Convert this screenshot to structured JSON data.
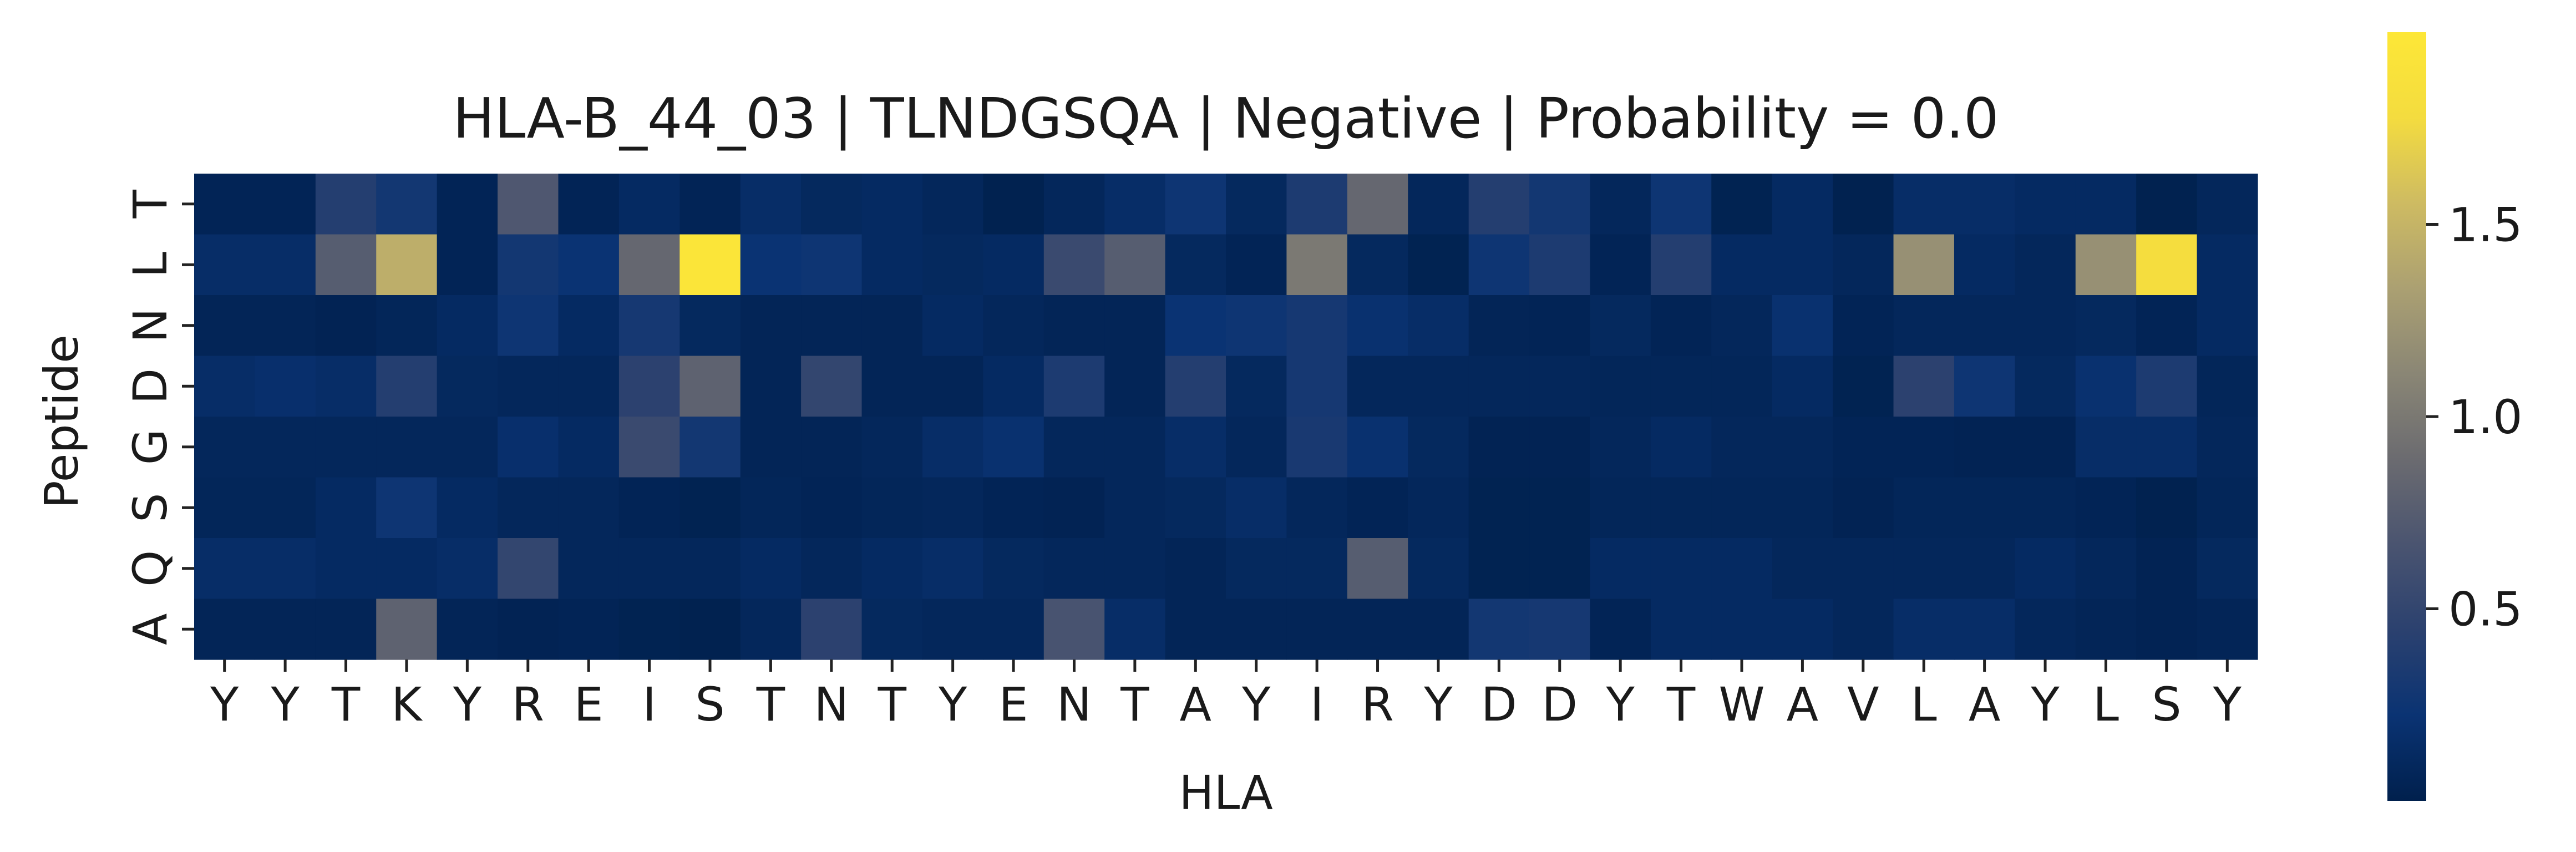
{
  "chart_data": {
    "type": "heatmap",
    "title": "HLA-B_44_03 | TLNDGSQA | Negative | Probability = 0.0",
    "xlabel": "HLA",
    "ylabel": "Peptide",
    "x_categories": [
      "Y",
      "Y",
      "T",
      "K",
      "Y",
      "R",
      "E",
      "I",
      "S",
      "T",
      "N",
      "T",
      "Y",
      "E",
      "N",
      "T",
      "A",
      "Y",
      "I",
      "R",
      "Y",
      "D",
      "D",
      "Y",
      "T",
      "W",
      "A",
      "V",
      "L",
      "A",
      "Y",
      "L",
      "S",
      "Y"
    ],
    "y_categories": [
      "T",
      "L",
      "N",
      "D",
      "G",
      "S",
      "Q",
      "A"
    ],
    "values": [
      [
        0.05,
        0.05,
        0.4,
        0.28,
        0.05,
        0.7,
        0.05,
        0.12,
        0.05,
        0.15,
        0.1,
        0.12,
        0.08,
        0.02,
        0.08,
        0.15,
        0.25,
        0.1,
        0.35,
        0.85,
        0.08,
        0.4,
        0.28,
        0.08,
        0.25,
        0.03,
        0.12,
        0.02,
        0.15,
        0.15,
        0.12,
        0.12,
        0.02,
        0.08
      ],
      [
        0.15,
        0.15,
        0.75,
        1.45,
        0.05,
        0.28,
        0.22,
        0.85,
        1.95,
        0.22,
        0.25,
        0.12,
        0.1,
        0.12,
        0.55,
        0.75,
        0.1,
        0.05,
        1.0,
        0.1,
        0.03,
        0.25,
        0.35,
        0.05,
        0.4,
        0.12,
        0.12,
        0.08,
        1.2,
        0.12,
        0.08,
        1.2,
        1.8,
        0.12
      ],
      [
        0.06,
        0.06,
        0.04,
        0.07,
        0.12,
        0.25,
        0.12,
        0.3,
        0.1,
        0.06,
        0.06,
        0.06,
        0.12,
        0.08,
        0.06,
        0.06,
        0.22,
        0.25,
        0.3,
        0.2,
        0.15,
        0.06,
        0.05,
        0.1,
        0.05,
        0.08,
        0.2,
        0.05,
        0.08,
        0.08,
        0.08,
        0.1,
        0.05,
        0.12
      ],
      [
        0.15,
        0.18,
        0.15,
        0.4,
        0.1,
        0.08,
        0.08,
        0.45,
        0.8,
        0.06,
        0.5,
        0.06,
        0.06,
        0.12,
        0.35,
        0.06,
        0.4,
        0.1,
        0.3,
        0.08,
        0.08,
        0.08,
        0.08,
        0.07,
        0.07,
        0.07,
        0.12,
        0.03,
        0.45,
        0.25,
        0.1,
        0.2,
        0.35,
        0.07
      ],
      [
        0.08,
        0.08,
        0.08,
        0.08,
        0.08,
        0.18,
        0.12,
        0.55,
        0.28,
        0.06,
        0.06,
        0.08,
        0.15,
        0.2,
        0.08,
        0.08,
        0.15,
        0.08,
        0.32,
        0.2,
        0.1,
        0.04,
        0.04,
        0.08,
        0.12,
        0.08,
        0.08,
        0.05,
        0.05,
        0.04,
        0.04,
        0.15,
        0.15,
        0.08
      ],
      [
        0.07,
        0.07,
        0.12,
        0.25,
        0.12,
        0.08,
        0.08,
        0.05,
        0.03,
        0.07,
        0.05,
        0.07,
        0.08,
        0.05,
        0.04,
        0.08,
        0.1,
        0.15,
        0.08,
        0.05,
        0.08,
        0.03,
        0.03,
        0.07,
        0.07,
        0.07,
        0.07,
        0.04,
        0.07,
        0.07,
        0.07,
        0.05,
        0.02,
        0.07
      ],
      [
        0.15,
        0.15,
        0.12,
        0.12,
        0.15,
        0.5,
        0.08,
        0.08,
        0.08,
        0.12,
        0.08,
        0.12,
        0.15,
        0.1,
        0.08,
        0.08,
        0.06,
        0.1,
        0.1,
        0.75,
        0.1,
        0.03,
        0.03,
        0.12,
        0.12,
        0.12,
        0.08,
        0.08,
        0.08,
        0.08,
        0.12,
        0.08,
        0.04,
        0.1
      ],
      [
        0.06,
        0.06,
        0.06,
        0.8,
        0.06,
        0.04,
        0.05,
        0.03,
        0.02,
        0.08,
        0.45,
        0.1,
        0.08,
        0.08,
        0.65,
        0.15,
        0.06,
        0.06,
        0.06,
        0.06,
        0.06,
        0.28,
        0.3,
        0.05,
        0.12,
        0.12,
        0.12,
        0.08,
        0.15,
        0.15,
        0.08,
        0.06,
        0.04,
        0.06
      ]
    ],
    "colormap": "cividis",
    "colors": [
      "#00204d",
      "#0a3373",
      "#2b416f",
      "#4a5470",
      "#6b6b70",
      "#8a8675",
      "#aba072",
      "#cebb62",
      "#f4dc3f",
      "#fde737"
    ],
    "vmin": 0.0,
    "vmax": 2.0,
    "colorbar": {
      "ticks": [
        0.5,
        1.0,
        1.5
      ],
      "tick_labels": [
        "0.5",
        "1.0",
        "1.5"
      ]
    },
    "grid": false,
    "legend": "colorbar-right"
  }
}
